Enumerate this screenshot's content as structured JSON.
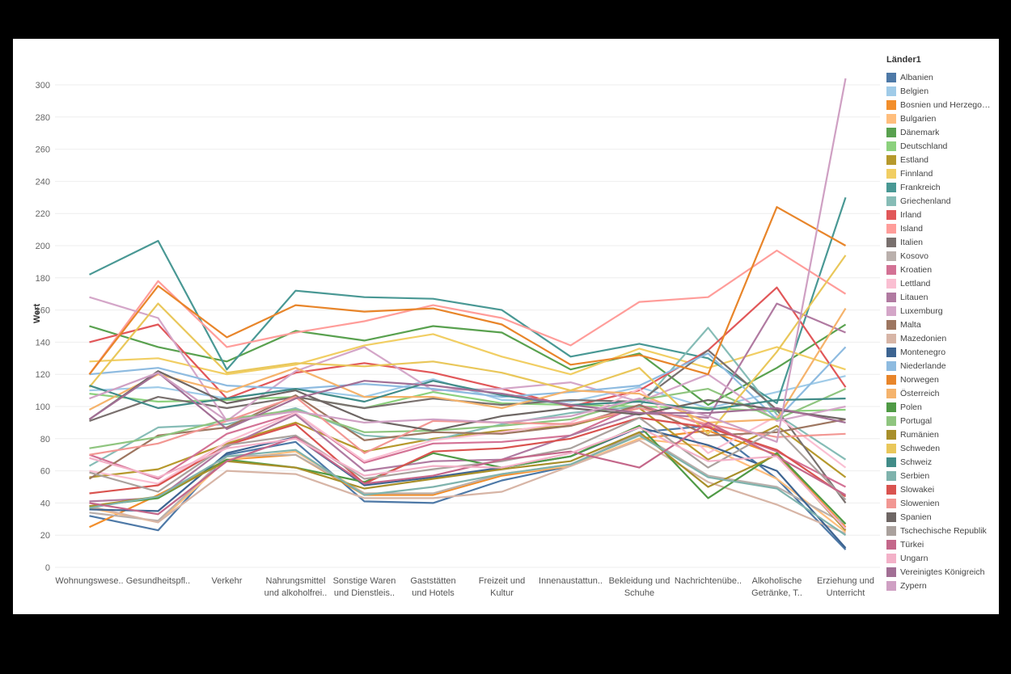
{
  "chart_data": {
    "type": "line",
    "ylabel": "Wert",
    "ylim": [
      0,
      310
    ],
    "yticks": [
      0,
      20,
      40,
      60,
      80,
      100,
      120,
      140,
      160,
      180,
      200,
      220,
      240,
      260,
      280,
      300
    ],
    "grid": true,
    "legend_title": "Länder1",
    "legend_position": "right",
    "categories": [
      "Wohnungswese..",
      "Gesundheitspfl..",
      "Verkehr",
      "Nahrungsmittel und alkoholfrei..",
      "Sonstige Waren und Dienstleis..",
      "Gaststätten und Hotels",
      "Freizeit und Kultur",
      "Innenaustattun..",
      "Bekleidung und Schuhe",
      "Nachrichtenübe..",
      "Alkoholische Getränke, T..",
      "Erziehung und Unterricht"
    ],
    "series": [
      {
        "name": "Albanien",
        "color": "#4e79a7",
        "values": [
          32,
          23,
          70,
          78,
          41,
          40,
          54,
          63,
          84,
          88,
          55,
          11
        ]
      },
      {
        "name": "Belgien",
        "color": "#a0cbe8",
        "values": [
          110,
          112,
          105,
          111,
          106,
          117,
          104,
          103,
          112,
          99,
          109,
          119
        ]
      },
      {
        "name": "Bosnien und Herzego…",
        "color": "#f28e2b",
        "values": [
          25,
          45,
          67,
          70,
          45,
          45,
          57,
          63,
          80,
          85,
          70,
          25
        ]
      },
      {
        "name": "Bulgarien",
        "color": "#ffbe7d",
        "values": [
          37,
          28,
          67,
          72,
          46,
          46,
          58,
          63,
          80,
          75,
          55,
          22
        ]
      },
      {
        "name": "Dänemark",
        "color": "#59a14f",
        "values": [
          150,
          137,
          128,
          147,
          141,
          150,
          146,
          123,
          133,
          101,
          124,
          151
        ]
      },
      {
        "name": "Deutschland",
        "color": "#8cd17d",
        "values": [
          108,
          103,
          104,
          106,
          99,
          109,
          102,
          101,
          100,
          99,
          97,
          98
        ]
      },
      {
        "name": "Estland",
        "color": "#b6992d",
        "values": [
          56,
          61,
          77,
          90,
          72,
          80,
          85,
          88,
          99,
          67,
          88,
          56
        ]
      },
      {
        "name": "Finnland",
        "color": "#f1ce63",
        "values": [
          128,
          130,
          120,
          126,
          138,
          145,
          131,
          120,
          136,
          124,
          137,
          123
        ]
      },
      {
        "name": "Frankreich",
        "color": "#499894",
        "values": [
          182,
          203,
          123,
          172,
          168,
          167,
          160,
          131,
          139,
          130,
          102,
          230
        ]
      },
      {
        "name": "Griechenland",
        "color": "#86bcb6",
        "values": [
          63,
          87,
          89,
          99,
          82,
          79,
          89,
          96,
          100,
          149,
          95,
          67
        ]
      },
      {
        "name": "Irland",
        "color": "#e15759",
        "values": [
          140,
          151,
          105,
          121,
          127,
          121,
          111,
          100,
          110,
          135,
          174,
          112
        ]
      },
      {
        "name": "Island",
        "color": "#ff9d9a",
        "values": [
          120,
          178,
          137,
          146,
          153,
          163,
          155,
          138,
          165,
          168,
          197,
          170
        ]
      },
      {
        "name": "Italien",
        "color": "#79706e",
        "values": [
          91,
          106,
          99,
          106,
          99,
          105,
          101,
          104,
          103,
          135,
          98,
          40
        ]
      },
      {
        "name": "Kosovo",
        "color": "#bab0ac",
        "values": [
          34,
          29,
          69,
          70,
          46,
          46,
          58,
          64,
          83,
          57,
          50,
          27
        ]
      },
      {
        "name": "Kroatien",
        "color": "#d37295",
        "values": [
          70,
          55,
          83,
          96,
          65,
          77,
          78,
          82,
          101,
          88,
          72,
          50
        ]
      },
      {
        "name": "Lettland",
        "color": "#fabfd2",
        "values": [
          60,
          52,
          78,
          96,
          66,
          79,
          84,
          90,
          111,
          71,
          94,
          62
        ]
      },
      {
        "name": "Litauen",
        "color": "#b07aa1",
        "values": [
          41,
          43,
          75,
          95,
          60,
          66,
          67,
          82,
          96,
          93,
          164,
          146
        ]
      },
      {
        "name": "Luxemburg",
        "color": "#d4a6c8",
        "values": [
          168,
          155,
          91,
          122,
          137,
          110,
          111,
          115,
          103,
          120,
          91,
          100
        ]
      },
      {
        "name": "Malta",
        "color": "#9d7660",
        "values": [
          55,
          82,
          87,
          107,
          79,
          84,
          83,
          88,
          101,
          82,
          84,
          92
        ]
      },
      {
        "name": "Mazedonien",
        "color": "#d7b5a6",
        "values": [
          38,
          28,
          60,
          58,
          43,
          43,
          47,
          63,
          79,
          53,
          39,
          21
        ]
      },
      {
        "name": "Montenegro",
        "color": "#3d6491",
        "values": [
          36,
          35,
          71,
          81,
          51,
          56,
          62,
          69,
          87,
          76,
          60,
          12
        ]
      },
      {
        "name": "Niederlande",
        "color": "#8ebbe0",
        "values": [
          120,
          124,
          113,
          111,
          114,
          111,
          106,
          109,
          113,
          133,
          92,
          137
        ]
      },
      {
        "name": "Norwegen",
        "color": "#e8852a",
        "values": [
          120,
          175,
          143,
          163,
          159,
          161,
          151,
          126,
          132,
          120,
          224,
          200
        ]
      },
      {
        "name": "Österreich",
        "color": "#f5b36c",
        "values": [
          98,
          120,
          109,
          124,
          106,
          106,
          99,
          110,
          108,
          90,
          92,
          161
        ]
      },
      {
        "name": "Polen",
        "color": "#4f9a45",
        "values": [
          38,
          43,
          67,
          62,
          53,
          71,
          62,
          69,
          88,
          43,
          71,
          27
        ]
      },
      {
        "name": "Portugal",
        "color": "#8fc57f",
        "values": [
          74,
          81,
          92,
          98,
          84,
          85,
          88,
          92,
          104,
          111,
          92,
          111
        ]
      },
      {
        "name": "Rumänien",
        "color": "#a88f2a",
        "values": [
          38,
          44,
          66,
          62,
          49,
          55,
          61,
          66,
          84,
          50,
          70,
          23
        ]
      },
      {
        "name": "Schweden",
        "color": "#e9c75a",
        "values": [
          112,
          164,
          121,
          127,
          125,
          128,
          121,
          110,
          124,
          83,
          134,
          194
        ]
      },
      {
        "name": "Schweiz",
        "color": "#418c88",
        "values": [
          113,
          99,
          105,
          111,
          103,
          116,
          107,
          101,
          103,
          98,
          104,
          105
        ]
      },
      {
        "name": "Serbien",
        "color": "#7fb3ad",
        "values": [
          37,
          44,
          69,
          73,
          45,
          50,
          58,
          64,
          82,
          56,
          49,
          20
        ]
      },
      {
        "name": "Slowakei",
        "color": "#d9534f",
        "values": [
          46,
          51,
          76,
          89,
          52,
          72,
          74,
          80,
          93,
          87,
          73,
          44
        ]
      },
      {
        "name": "Slowenien",
        "color": "#f29793",
        "values": [
          70,
          77,
          91,
          106,
          71,
          91,
          90,
          89,
          99,
          89,
          81,
          83
        ]
      },
      {
        "name": "Spanien",
        "color": "#6e6664",
        "values": [
          92,
          122,
          102,
          110,
          92,
          85,
          94,
          99,
          95,
          104,
          98,
          92
        ]
      },
      {
        "name": "Tschechische Republik",
        "color": "#aaa19d",
        "values": [
          59,
          47,
          76,
          82,
          55,
          61,
          66,
          74,
          93,
          62,
          86,
          42
        ]
      },
      {
        "name": "Türkei",
        "color": "#c4678a",
        "values": [
          40,
          33,
          66,
          81,
          52,
          57,
          67,
          72,
          62,
          90,
          69,
          45
        ]
      },
      {
        "name": "Ungarn",
        "color": "#f3b1c8",
        "values": [
          68,
          56,
          74,
          80,
          57,
          63,
          62,
          71,
          87,
          66,
          69,
          24
        ]
      },
      {
        "name": "Vereinigtes Königreich",
        "color": "#a26f95",
        "values": [
          92,
          121,
          86,
          105,
          116,
          113,
          108,
          101,
          96,
          96,
          99,
          90
        ]
      },
      {
        "name": "Zypern",
        "color": "#cfa0c3",
        "values": [
          105,
          121,
          91,
          97,
          90,
          92,
          90,
          94,
          105,
          94,
          78,
          304
        ]
      }
    ]
  }
}
